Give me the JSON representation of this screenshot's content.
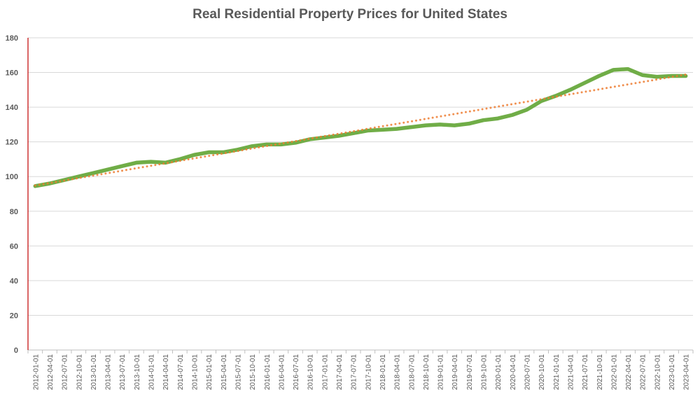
{
  "chart_data": {
    "type": "line",
    "title": "Real Residential Property Prices for United States",
    "xlabel": "",
    "ylabel": "",
    "ylim": [
      0,
      180
    ],
    "yticks": [
      0,
      20,
      40,
      60,
      80,
      100,
      120,
      140,
      160,
      180
    ],
    "grid": true,
    "legend": "none",
    "x": [
      "2012-01-01",
      "2012-04-01",
      "2012-07-01",
      "2012-10-01",
      "2013-01-01",
      "2013-04-01",
      "2013-07-01",
      "2013-10-01",
      "2014-01-01",
      "2014-04-01",
      "2014-07-01",
      "2014-10-01",
      "2015-01-01",
      "2015-04-01",
      "2015-07-01",
      "2015-10-01",
      "2016-01-01",
      "2016-04-01",
      "2016-07-01",
      "2016-10-01",
      "2017-01-01",
      "2017-04-01",
      "2017-07-01",
      "2017-10-01",
      "2018-01-01",
      "2018-04-01",
      "2018-07-01",
      "2018-10-01",
      "2019-01-01",
      "2019-04-01",
      "2019-07-01",
      "2019-10-01",
      "2020-01-01",
      "2020-04-01",
      "2020-07-01",
      "2020-10-01",
      "2021-01-01",
      "2021-04-01",
      "2021-07-01",
      "2021-10-01",
      "2022-01-01",
      "2022-04-01",
      "2022-07-01",
      "2022-10-01",
      "2023-01-01",
      "2023-04-01"
    ],
    "series": [
      {
        "values": [
          94.5,
          96,
          98,
          100,
          102,
          104,
          106,
          108,
          108.5,
          108,
          110,
          112.5,
          114,
          114,
          115.5,
          117.5,
          118.5,
          118.5,
          119.5,
          121.5,
          122.5,
          123.5,
          125,
          126.5,
          127,
          127.5,
          128.5,
          129.5,
          130,
          129.5,
          130.5,
          132.5,
          133.5,
          135.5,
          138.5,
          143.5,
          146.5,
          150,
          154,
          158,
          161.5,
          162,
          158.5,
          157.5,
          158,
          158
        ],
        "color": "#70AD47"
      }
    ],
    "trendline": {
      "type": "linear",
      "color": "#ED7D31",
      "style": "dotted"
    },
    "axis_color": "#C00000"
  }
}
